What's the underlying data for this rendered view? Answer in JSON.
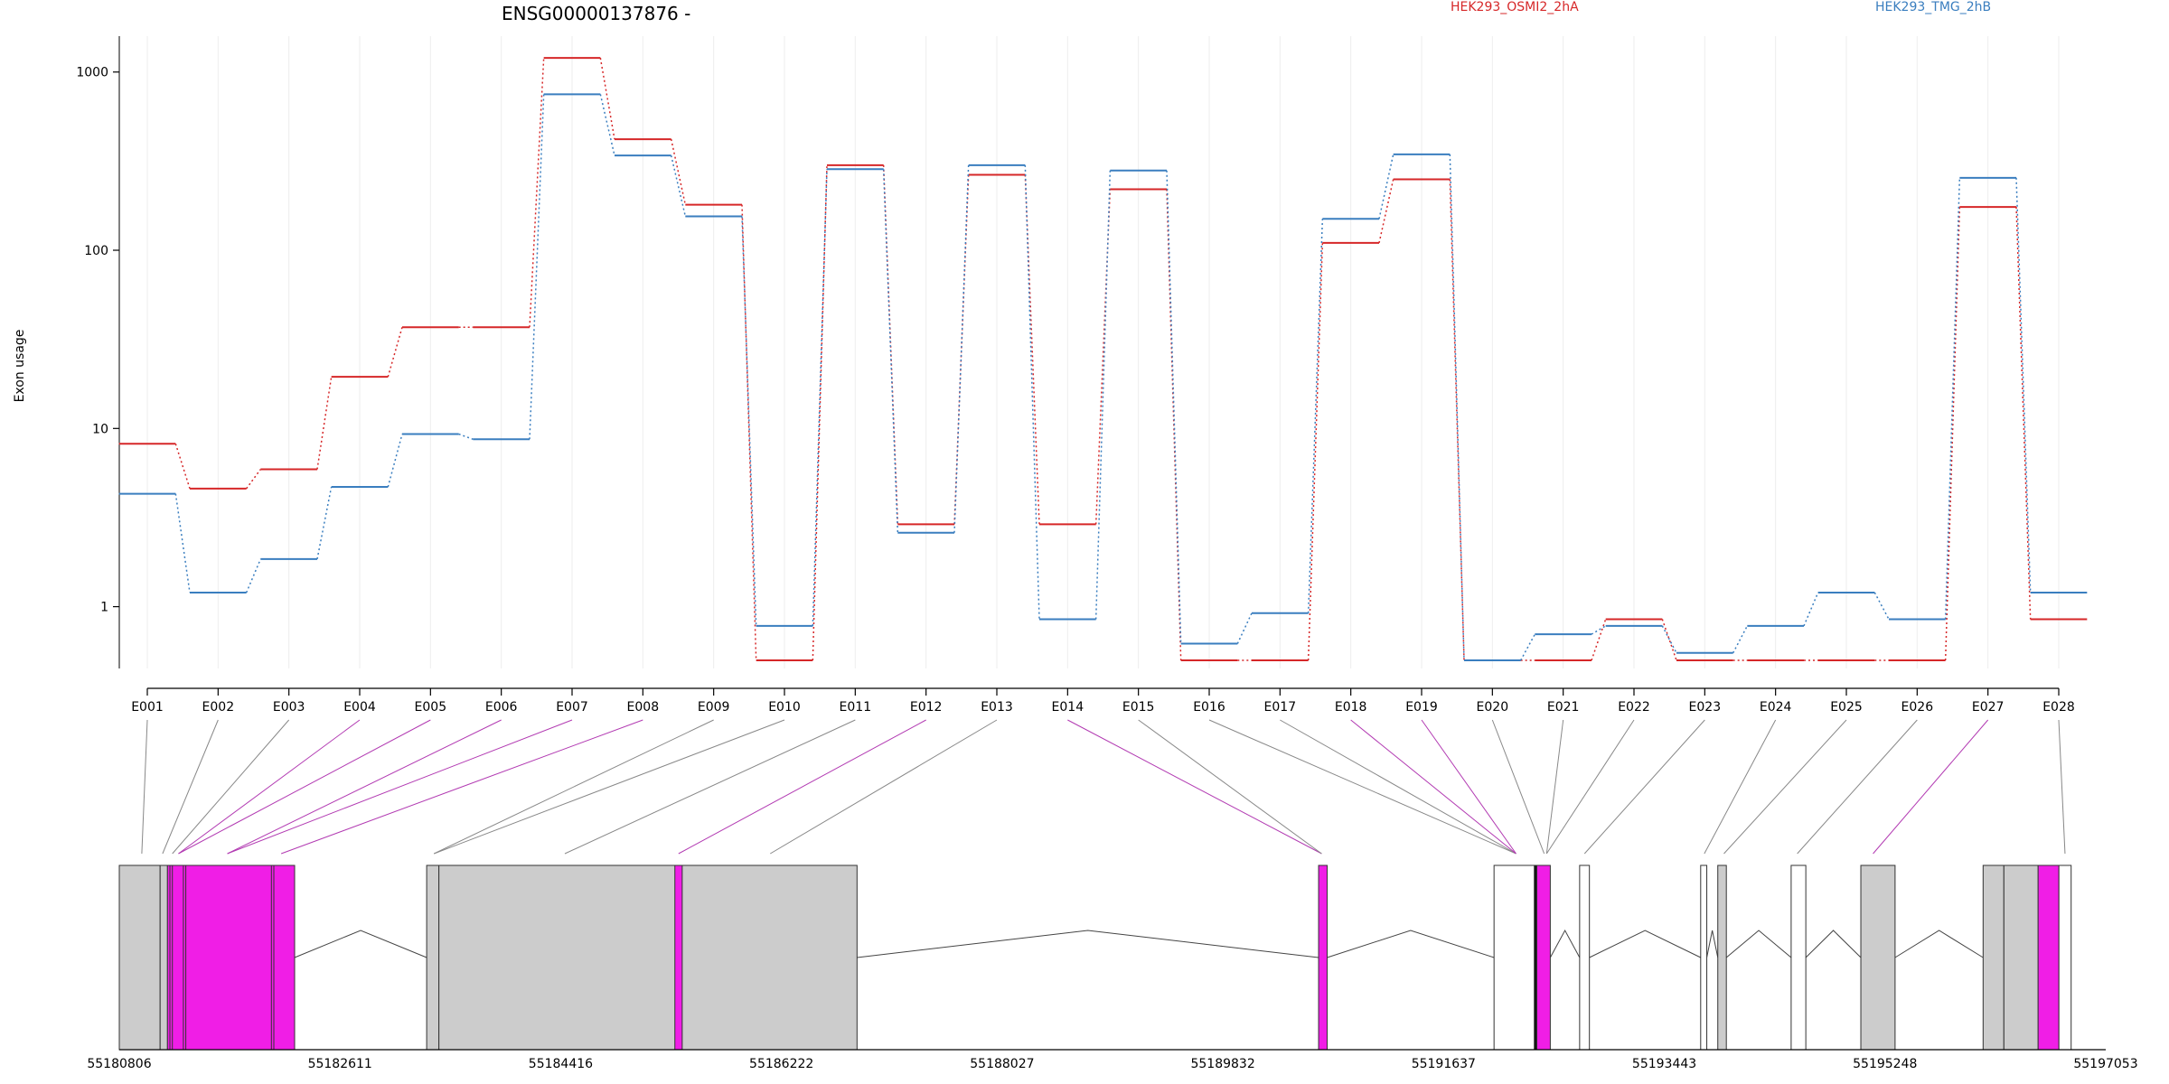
{
  "chart_data": {
    "type": "line",
    "gene_title": "ENSG00000137876 -",
    "ylabel": "Exon usage",
    "y_scale": "log",
    "ylim": [
      0.45,
      1500
    ],
    "y_ticks": [
      1,
      10,
      100,
      1000
    ],
    "y_tick_labels": [
      "1",
      "10",
      "100",
      "1000"
    ],
    "grid": true,
    "legend_position": "top",
    "categories": [
      "E001",
      "E002",
      "E003",
      "E004",
      "E005",
      "E006",
      "E007",
      "E008",
      "E009",
      "E010",
      "E011",
      "E012",
      "E013",
      "E014",
      "E015",
      "E016",
      "E017",
      "E018",
      "E019",
      "E020",
      "E021",
      "E022",
      "E023",
      "E024",
      "E025",
      "E026",
      "E027",
      "E028"
    ],
    "series": [
      {
        "name": "HEK293_OSMI2_2hA",
        "color": "#d62728",
        "values": [
          8.2,
          4.6,
          5.9,
          19.5,
          37,
          37,
          1200,
          420,
          180,
          0.5,
          300,
          2.9,
          265,
          2.9,
          220,
          0.5,
          0.5,
          110,
          250,
          0.5,
          0.5,
          0.85,
          0.5,
          0.5,
          0.5,
          0.5,
          175,
          0.85
        ]
      },
      {
        "name": "HEK293_TMG_2hB",
        "color": "#3a7ebf",
        "values": [
          4.3,
          1.2,
          1.85,
          4.7,
          9.3,
          8.7,
          750,
          340,
          155,
          0.78,
          285,
          2.6,
          300,
          0.85,
          280,
          0.62,
          0.92,
          150,
          345,
          0.5,
          0.7,
          0.78,
          0.55,
          0.78,
          1.2,
          0.85,
          255,
          1.2
        ]
      }
    ],
    "genome_axis": {
      "tick_labels": [
        "55180806",
        "55182611",
        "55184416",
        "55186222",
        "55188027",
        "55189832",
        "55191637",
        "55193443",
        "55195248",
        "55197053"
      ],
      "range": [
        55180806,
        55197053
      ]
    },
    "exon_blocks": [
      {
        "start": 55180806,
        "end": 55181140,
        "fill": "#cccccc"
      },
      {
        "start": 55181140,
        "end": 55181200,
        "fill": "#cccccc"
      },
      {
        "start": 55181200,
        "end": 55182240,
        "fill": "#f01ee6"
      },
      {
        "start": 55181220,
        "end": 55181240,
        "fill": "#f01ee6"
      },
      {
        "start": 55181330,
        "end": 55181350,
        "fill": "#f01ee6"
      },
      {
        "start": 55182050,
        "end": 55182070,
        "fill": "#f01ee6"
      },
      {
        "start": 55183320,
        "end": 55183420,
        "fill": "#cccccc"
      },
      {
        "start": 55183420,
        "end": 55186840,
        "fill": "#cccccc"
      },
      {
        "start": 55185350,
        "end": 55185410,
        "fill": "#f01ee6"
      },
      {
        "start": 55190615,
        "end": 55190685,
        "fill": "#f01ee6"
      },
      {
        "start": 55192050,
        "end": 55192380,
        "fill": "#ffffff"
      },
      {
        "start": 55192380,
        "end": 55192400,
        "fill": "#111111"
      },
      {
        "start": 55192400,
        "end": 55192510,
        "fill": "#f01ee6"
      },
      {
        "start": 55192750,
        "end": 55192830,
        "fill": "#ffffff"
      },
      {
        "start": 55193740,
        "end": 55193790,
        "fill": "#ffffff"
      },
      {
        "start": 55193880,
        "end": 55193950,
        "fill": "#cccccc"
      },
      {
        "start": 55194480,
        "end": 55194600,
        "fill": "#ffffff"
      },
      {
        "start": 55195050,
        "end": 55195330,
        "fill": "#cccccc"
      },
      {
        "start": 55196050,
        "end": 55196220,
        "fill": "#cccccc"
      },
      {
        "start": 55196220,
        "end": 55196500,
        "fill": "#cccccc"
      },
      {
        "start": 55196500,
        "end": 55196670,
        "fill": "#f01ee6"
      },
      {
        "start": 55196670,
        "end": 55196770,
        "fill": "#ffffff"
      }
    ],
    "introns": [
      [
        55182240,
        55183320
      ],
      [
        55186840,
        55190615
      ],
      [
        55190685,
        55192050
      ],
      [
        55192510,
        55192750
      ],
      [
        55192830,
        55193740
      ],
      [
        55193790,
        55193880
      ],
      [
        55193950,
        55194480
      ],
      [
        55194600,
        55195050
      ],
      [
        55195330,
        55196050
      ]
    ],
    "connector_targets": [
      55180990,
      55181160,
      55181240,
      55181290,
      55181690,
      55182130,
      55183380,
      55184450,
      55185380,
      55186130,
      55190640,
      55192230,
      55192460,
      55192480,
      55192790,
      55193770,
      55193930,
      55194530,
      55195150,
      55196170,
      55196500,
      55196620,
      55196720
    ],
    "connector_colors": [
      "#888888",
      "#888888",
      "#888888",
      "#b23ab2",
      "#b23ab2",
      "#b23ab2",
      "#b23ab2",
      "#b23ab2",
      "#888888",
      "#888888",
      "#888888",
      "#b23ab2",
      "#888888",
      "#b23ab2",
      "#888888",
      "#888888",
      "#888888",
      "#b23ab2",
      "#b23ab2",
      "#888888",
      "#888888",
      "#888888",
      "#888888",
      "#888888",
      "#888888",
      "#888888",
      "#b23ab2",
      "#888888"
    ],
    "connector_target_index": [
      0,
      1,
      2,
      3,
      3,
      4,
      4,
      5,
      6,
      6,
      7,
      8,
      9,
      10,
      10,
      11,
      11,
      11,
      11,
      12,
      13,
      13,
      14,
      15,
      16,
      17,
      18,
      22
    ]
  }
}
